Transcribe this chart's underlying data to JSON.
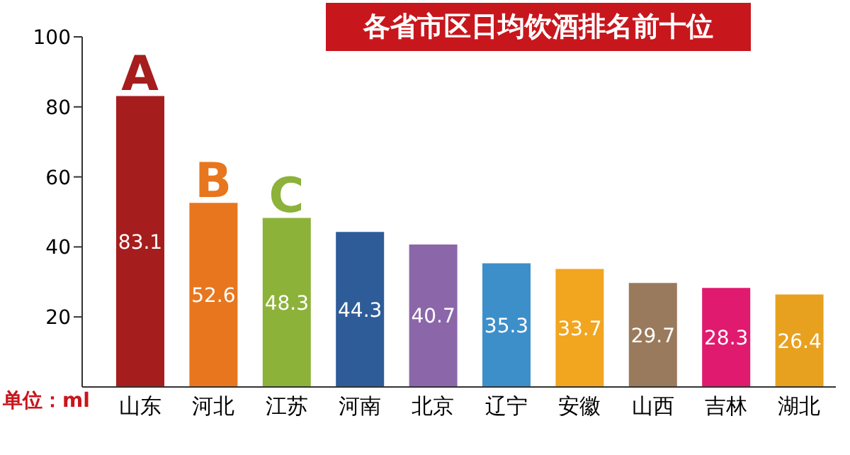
{
  "chart_data": {
    "type": "bar",
    "title": "各省市区日均饮酒排名前十位",
    "categories": [
      "山东",
      "河北",
      "江苏",
      "河南",
      "北京",
      "辽宁",
      "安徽",
      "山西",
      "吉林",
      "湖北"
    ],
    "values": [
      83.1,
      52.6,
      48.3,
      44.3,
      40.7,
      35.3,
      33.7,
      29.7,
      28.3,
      26.4
    ],
    "colors": [
      "#a61d1d",
      "#e8761e",
      "#8cb23a",
      "#2e5c98",
      "#8b66a9",
      "#3d8fca",
      "#f2a51f",
      "#9a7a5c",
      "#e01a6e",
      "#e8a11f"
    ],
    "ylim": [
      0,
      100
    ],
    "yticks": [
      20,
      40,
      60,
      80,
      100
    ],
    "grid": false,
    "legend": false,
    "data_labels": true,
    "annotations": [
      {
        "text": "A",
        "x": "山东",
        "y": 83.1
      },
      {
        "text": "B",
        "x": "河北",
        "y": 52.6
      },
      {
        "text": "C",
        "x": "江苏",
        "y": 48.3
      },
      "单位：ml"
    ]
  }
}
